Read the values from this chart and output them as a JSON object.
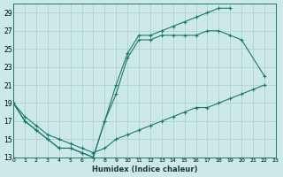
{
  "xlabel": "Humidex (Indice chaleur)",
  "bg_color": "#cce8e8",
  "line_color": "#1a7a6a",
  "grid_color": "#aacece",
  "xlim": [
    0,
    23
  ],
  "ylim": [
    13,
    30
  ],
  "xticks": [
    0,
    1,
    2,
    3,
    4,
    5,
    6,
    7,
    8,
    9,
    10,
    11,
    12,
    13,
    14,
    15,
    16,
    17,
    18,
    19,
    20,
    21,
    22,
    23
  ],
  "yticks": [
    13,
    15,
    17,
    19,
    21,
    23,
    25,
    27,
    29
  ],
  "line1_x": [
    0,
    1,
    2,
    3,
    4,
    5,
    6,
    7,
    8,
    9,
    10,
    11,
    12,
    13,
    14,
    15,
    16,
    17,
    18,
    19
  ],
  "line1_y": [
    19,
    17,
    16,
    15,
    14,
    14,
    13.5,
    13,
    17,
    21,
    24.5,
    26.5,
    26.5,
    27,
    27.5,
    28,
    28.5,
    29,
    29.5,
    29.5
  ],
  "line2_x": [
    0,
    1,
    2,
    3,
    4,
    5,
    6,
    7,
    8,
    9,
    10,
    11,
    12,
    13,
    14,
    15,
    16,
    17,
    18,
    19,
    20,
    22
  ],
  "line2_y": [
    19,
    17,
    16,
    15,
    14,
    14,
    13.5,
    13,
    17,
    20,
    24,
    26,
    26,
    26.5,
    26.5,
    26.5,
    26.5,
    27,
    27,
    26.5,
    26,
    22
  ],
  "line3_x": [
    0,
    1,
    2,
    3,
    4,
    5,
    6,
    7,
    8,
    9,
    10,
    11,
    12,
    13,
    14,
    15,
    16,
    17,
    18,
    19,
    20,
    21,
    22
  ],
  "line3_y": [
    19,
    17.5,
    16.5,
    15.5,
    15,
    14.5,
    14,
    13.5,
    14,
    15,
    15.5,
    16,
    16.5,
    17,
    17.5,
    18,
    18.5,
    18.5,
    19,
    19.5,
    20,
    20.5,
    21
  ]
}
